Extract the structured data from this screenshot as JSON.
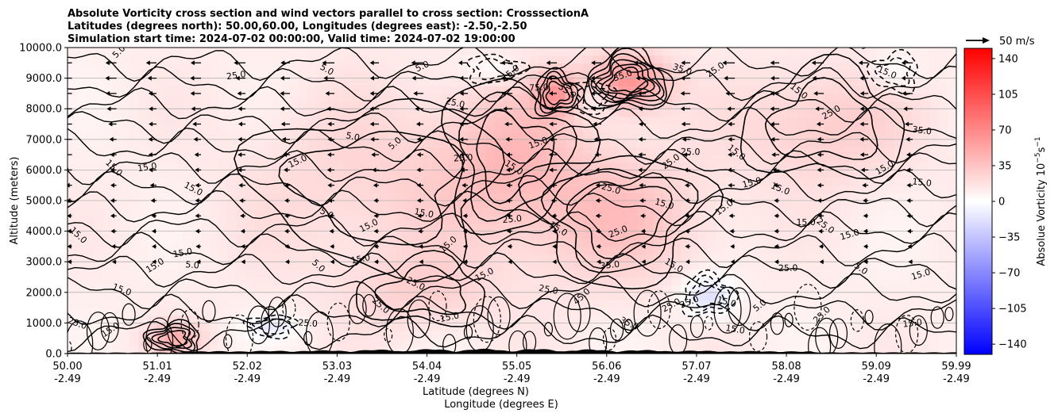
{
  "chart_data": {
    "type": "contour",
    "title_lines": [
      "Absolute Vorticity cross section and wind vectors parallel to cross section: CrosssectionA",
      "Latitudes (degrees north): 50.00,60.00, Longitudes (degrees east): -2.50,-2.50",
      "Simulation start time: 2024-07-02 00:00:00, Valid time: 2024-07-02 19:00:00"
    ],
    "xlabel_lines": [
      "Latitude (degrees N)",
      "Longitude (degrees E)"
    ],
    "ylabel": "Altitude (meters)",
    "x_ticks": [
      {
        "lat": 50.0,
        "lat_label": "50.00",
        "lon_label": "-2.49"
      },
      {
        "lat": 51.01,
        "lat_label": "51.01",
        "lon_label": "-2.49"
      },
      {
        "lat": 52.02,
        "lat_label": "52.02",
        "lon_label": "-2.49"
      },
      {
        "lat": 53.03,
        "lat_label": "53.03",
        "lon_label": "-2.49"
      },
      {
        "lat": 54.04,
        "lat_label": "54.04",
        "lon_label": "-2.49"
      },
      {
        "lat": 55.05,
        "lat_label": "55.05",
        "lon_label": "-2.49"
      },
      {
        "lat": 56.06,
        "lat_label": "56.06",
        "lon_label": "-2.49"
      },
      {
        "lat": 57.07,
        "lat_label": "57.07",
        "lon_label": "-2.49"
      },
      {
        "lat": 58.08,
        "lat_label": "58.08",
        "lon_label": "-2.49"
      },
      {
        "lat": 59.09,
        "lat_label": "59.09",
        "lon_label": "-2.49"
      },
      {
        "lat": 59.99,
        "lat_label": "59.99",
        "lon_label": "-2.49"
      }
    ],
    "xlim": [
      50.0,
      59.99
    ],
    "y_ticks": [
      {
        "value": 0,
        "label": "0.0"
      },
      {
        "value": 1000,
        "label": "1000.0"
      },
      {
        "value": 2000,
        "label": "2000.0"
      },
      {
        "value": 3000,
        "label": "3000.0"
      },
      {
        "value": 4000,
        "label": "4000.0"
      },
      {
        "value": 5000,
        "label": "5000.0"
      },
      {
        "value": 6000,
        "label": "6000.0"
      },
      {
        "value": 7000,
        "label": "7000.0"
      },
      {
        "value": 8000,
        "label": "8000.0"
      },
      {
        "value": 9000,
        "label": "9000.0"
      },
      {
        "value": 10000,
        "label": "10000.0"
      }
    ],
    "ylim": [
      0,
      10000
    ],
    "grid": "horizontal lines at y ticks",
    "colorbar": {
      "label": "Absolue Vorticity 10",
      "label_exponent": "−5",
      "label_unit": "s",
      "label_unit_exponent": "−1",
      "range": [
        -150,
        150
      ],
      "cmap": "bwr",
      "colors": {
        "low": "#0000ff",
        "mid": "#ffffff",
        "high": "#ff0000"
      },
      "ticks": [
        {
          "value": 140,
          "label": "140"
        },
        {
          "value": 105,
          "label": "105"
        },
        {
          "value": 70,
          "label": "70"
        },
        {
          "value": 35,
          "label": "35"
        },
        {
          "value": 0,
          "label": "0"
        },
        {
          "value": -35,
          "label": "−35"
        },
        {
          "value": -70,
          "label": "−70"
        },
        {
          "value": -105,
          "label": "−105"
        },
        {
          "value": -140,
          "label": "−140"
        }
      ]
    },
    "quiver_key": {
      "label": "50 m/s",
      "speed": 50
    },
    "wind_vectors": {
      "direction": "mostly southward (pointing left) aloft",
      "lat_columns": [
        50.05,
        50.55,
        51.0,
        51.5,
        52.0,
        52.5,
        53.0,
        53.5,
        54.0,
        54.5,
        55.0,
        55.5,
        56.0,
        56.5,
        57.0,
        57.5,
        58.0,
        58.5,
        59.0,
        59.5
      ],
      "speed_profile_ms": [
        {
          "altitude": 9500,
          "speed": 22
        },
        {
          "altitude": 9000,
          "speed": 20
        },
        {
          "altitude": 8500,
          "speed": 18
        },
        {
          "altitude": 8000,
          "speed": 16
        },
        {
          "altitude": 7500,
          "speed": 14
        },
        {
          "altitude": 7000,
          "speed": 13
        },
        {
          "altitude": 6500,
          "speed": 12
        },
        {
          "altitude": 6000,
          "speed": 11
        },
        {
          "altitude": 5500,
          "speed": 9
        },
        {
          "altitude": 5000,
          "speed": 8
        },
        {
          "altitude": 4500,
          "speed": 7
        },
        {
          "altitude": 4000,
          "speed": 6
        },
        {
          "altitude": 3500,
          "speed": 5
        },
        {
          "altitude": 3000,
          "speed": 4
        }
      ]
    },
    "vorticity_features": [
      {
        "lat": 56.3,
        "alt": 8900,
        "value": 55,
        "spread_lat": 0.45,
        "spread_alt": 900
      },
      {
        "lat": 55.5,
        "alt": 8500,
        "value": 40,
        "spread_lat": 0.25,
        "spread_alt": 700
      },
      {
        "lat": 55.0,
        "alt": 6500,
        "value": 25,
        "spread_lat": 0.8,
        "spread_alt": 2500
      },
      {
        "lat": 56.2,
        "alt": 4500,
        "value": 25,
        "spread_lat": 1.0,
        "spread_alt": 2200
      },
      {
        "lat": 53.5,
        "alt": 5500,
        "value": 15,
        "spread_lat": 1.5,
        "spread_alt": 3000
      },
      {
        "lat": 51.2,
        "alt": 500,
        "value": 35,
        "spread_lat": 0.3,
        "spread_alt": 500
      },
      {
        "lat": 58.5,
        "alt": 7500,
        "value": 20,
        "spread_lat": 1.0,
        "spread_alt": 2000
      },
      {
        "lat": 57.2,
        "alt": 1900,
        "value": -30,
        "spread_lat": 0.3,
        "spread_alt": 700
      },
      {
        "lat": 54.8,
        "alt": 9300,
        "value": -15,
        "spread_lat": 0.35,
        "spread_alt": 500
      },
      {
        "lat": 55.9,
        "alt": 8400,
        "value": -20,
        "spread_lat": 0.25,
        "spread_alt": 600
      },
      {
        "lat": 52.3,
        "alt": 900,
        "value": -20,
        "spread_lat": 0.3,
        "spread_alt": 400
      },
      {
        "lat": 59.3,
        "alt": 9200,
        "value": -15,
        "spread_lat": 0.3,
        "spread_alt": 700
      },
      {
        "lat": 54.0,
        "alt": 2000,
        "value": 15,
        "spread_lat": 0.8,
        "spread_alt": 1200
      }
    ],
    "contour_labels": [
      {
        "lat": 50.6,
        "alt": 9800,
        "text": "5.0"
      },
      {
        "lat": 51.9,
        "alt": 9000,
        "text": "25.0"
      },
      {
        "lat": 52.9,
        "alt": 9200,
        "text": "5.0"
      },
      {
        "lat": 54.0,
        "alt": 9300,
        "text": "5.0"
      },
      {
        "lat": 54.35,
        "alt": 8100,
        "text": "25.0"
      },
      {
        "lat": 55.0,
        "alt": 9100,
        "text": "15.0"
      },
      {
        "lat": 55.3,
        "alt": 8600,
        "text": "75.0"
      },
      {
        "lat": 55.6,
        "alt": 8500,
        "text": "35.0"
      },
      {
        "lat": 56.25,
        "alt": 9000,
        "text": "35.0"
      },
      {
        "lat": 56.9,
        "alt": 9200,
        "text": "35.0"
      },
      {
        "lat": 57.3,
        "alt": 9200,
        "text": "25.0"
      },
      {
        "lat": 57.8,
        "alt": 10000,
        "text": "15.0"
      },
      {
        "lat": 58.2,
        "alt": 8500,
        "text": "15.0"
      },
      {
        "lat": 59.0,
        "alt": 10000,
        "text": "5.0"
      },
      {
        "lat": 59.2,
        "alt": 9100,
        "text": "15.0"
      },
      {
        "lat": 58.6,
        "alt": 7800,
        "text": "25.0"
      },
      {
        "lat": 59.6,
        "alt": 7200,
        "text": "35.0"
      },
      {
        "lat": 50.5,
        "alt": 6000,
        "text": "15.0"
      },
      {
        "lat": 50.9,
        "alt": 6000,
        "text": "15.0"
      },
      {
        "lat": 51.4,
        "alt": 5300,
        "text": "15.0"
      },
      {
        "lat": 52.6,
        "alt": 6200,
        "text": "15.0"
      },
      {
        "lat": 53.2,
        "alt": 7000,
        "text": "5.0"
      },
      {
        "lat": 53.7,
        "alt": 6800,
        "text": "5.0"
      },
      {
        "lat": 54.45,
        "alt": 6300,
        "text": "25.0"
      },
      {
        "lat": 55.0,
        "alt": 6000,
        "text": "15.0"
      },
      {
        "lat": 55.3,
        "alt": 6800,
        "text": "15.0"
      },
      {
        "lat": 56.1,
        "alt": 5300,
        "text": "25.0"
      },
      {
        "lat": 56.8,
        "alt": 6200,
        "text": "25.0"
      },
      {
        "lat": 57.0,
        "alt": 6500,
        "text": "25.0"
      },
      {
        "lat": 57.5,
        "alt": 6500,
        "text": "15.0"
      },
      {
        "lat": 57.7,
        "alt": 5500,
        "text": "15.0"
      },
      {
        "lat": 58.0,
        "alt": 5300,
        "text": "15.0"
      },
      {
        "lat": 59.2,
        "alt": 6000,
        "text": "15.0"
      },
      {
        "lat": 59.6,
        "alt": 5500,
        "text": "15.0"
      },
      {
        "lat": 50.1,
        "alt": 3800,
        "text": "15.0"
      },
      {
        "lat": 51.3,
        "alt": 3200,
        "text": "15.0"
      },
      {
        "lat": 52.9,
        "alt": 4500,
        "text": "5.0"
      },
      {
        "lat": 53.4,
        "alt": 4100,
        "text": "15.0"
      },
      {
        "lat": 54.0,
        "alt": 4500,
        "text": "15.0"
      },
      {
        "lat": 54.3,
        "alt": 3500,
        "text": "15.0"
      },
      {
        "lat": 55.0,
        "alt": 4300,
        "text": "25.0"
      },
      {
        "lat": 55.5,
        "alt": 4000,
        "text": "15.0"
      },
      {
        "lat": 56.2,
        "alt": 3900,
        "text": "25.0"
      },
      {
        "lat": 56.7,
        "alt": 4800,
        "text": "15.0"
      },
      {
        "lat": 57.4,
        "alt": 4700,
        "text": "15.0"
      },
      {
        "lat": 58.3,
        "alt": 4200,
        "text": "15.0"
      },
      {
        "lat": 58.5,
        "alt": 4100,
        "text": "25.0"
      },
      {
        "lat": 58.8,
        "alt": 3800,
        "text": "15.0"
      },
      {
        "lat": 50.6,
        "alt": 2000,
        "text": "15.0"
      },
      {
        "lat": 51.0,
        "alt": 2800,
        "text": "15.0"
      },
      {
        "lat": 51.4,
        "alt": 2800,
        "text": "5.0"
      },
      {
        "lat": 52.8,
        "alt": 2800,
        "text": "5.0"
      },
      {
        "lat": 53.3,
        "alt": 3000,
        "text": "15.0"
      },
      {
        "lat": 53.9,
        "alt": 2200,
        "text": "25.0"
      },
      {
        "lat": 54.7,
        "alt": 2500,
        "text": "15.0"
      },
      {
        "lat": 55.4,
        "alt": 2000,
        "text": "25.0"
      },
      {
        "lat": 55.8,
        "alt": 1800,
        "text": "45.0"
      },
      {
        "lat": 56.1,
        "alt": 2800,
        "text": "35.0"
      },
      {
        "lat": 56.8,
        "alt": 2800,
        "text": "15.0"
      },
      {
        "lat": 57.0,
        "alt": 1600,
        "text": "35.0"
      },
      {
        "lat": 57.4,
        "alt": 1600,
        "text": "15.0"
      },
      {
        "lat": 57.8,
        "alt": 1500,
        "text": "5.0"
      },
      {
        "lat": 58.1,
        "alt": 2700,
        "text": "25.0"
      },
      {
        "lat": 58.9,
        "alt": 2700,
        "text": "5.0"
      },
      {
        "lat": 59.6,
        "alt": 2500,
        "text": "15.0"
      },
      {
        "lat": 50.1,
        "alt": 900,
        "text": "25.0"
      },
      {
        "lat": 50.5,
        "alt": 700,
        "text": "15.0"
      },
      {
        "lat": 52.7,
        "alt": 900,
        "text": "25.0"
      },
      {
        "lat": 53.5,
        "alt": 1500,
        "text": "25.0"
      },
      {
        "lat": 54.3,
        "alt": 1100,
        "text": "15.0"
      },
      {
        "lat": 56.3,
        "alt": 900,
        "text": "35.0"
      },
      {
        "lat": 56.8,
        "alt": 1500,
        "text": "25.0"
      },
      {
        "lat": 57.5,
        "alt": 700,
        "text": "15.0"
      },
      {
        "lat": 58.5,
        "alt": 1200,
        "text": "25.0"
      },
      {
        "lat": 59.5,
        "alt": 900,
        "text": "15.0"
      }
    ]
  }
}
